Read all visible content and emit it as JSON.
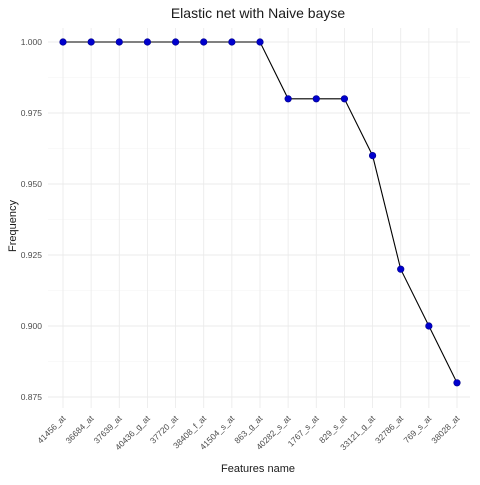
{
  "chart_data": {
    "type": "line",
    "title": "Elastic net with Naive bayse",
    "xlabel": "Features name",
    "ylabel": "Frequency",
    "categories": [
      "41456_at",
      "36684_at",
      "37639_at",
      "40436_g_at",
      "37720_at",
      "38408_f_at",
      "41504_s_at",
      "863_g_at",
      "40282_s_at",
      "1767_s_at",
      "829_s_at",
      "33121_g_at",
      "32786_at",
      "769_s_at",
      "38028_at"
    ],
    "values": [
      1.0,
      1.0,
      1.0,
      1.0,
      1.0,
      1.0,
      1.0,
      1.0,
      0.98,
      0.98,
      0.98,
      0.96,
      0.92,
      0.9,
      0.88
    ],
    "ylim": [
      0.875,
      1.0
    ],
    "yticks": [
      "0.875",
      "0.900",
      "0.925",
      "0.950",
      "0.975",
      "1.000"
    ],
    "grid": true,
    "legend": "none",
    "point_color": "#0000cd",
    "line_color": "#000000"
  }
}
